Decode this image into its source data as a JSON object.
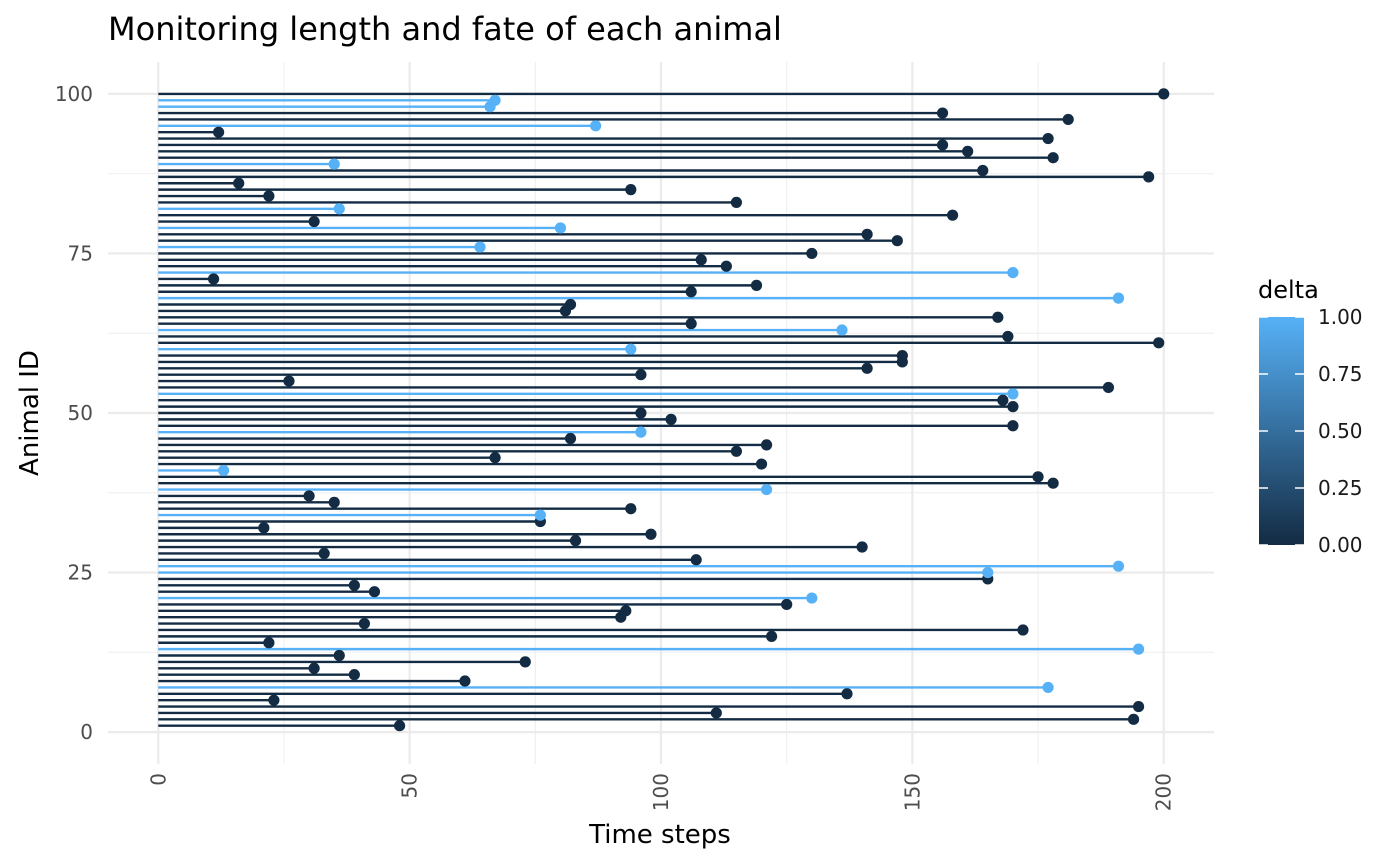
{
  "chart_data": {
    "type": "lollipop",
    "title": "Monitoring length and fate of each animal",
    "xlabel": "Time steps",
    "ylabel": "Animal ID",
    "xlim": [
      -10,
      210
    ],
    "ylim": [
      -5,
      105
    ],
    "x_ticks": [
      "0",
      "50",
      "100",
      "150",
      "200"
    ],
    "y_ticks": [
      "0",
      "25",
      "50",
      "75",
      "100"
    ],
    "grid": true,
    "legend": {
      "title": "delta",
      "placement": "right",
      "labels": [
        "1.00",
        "0.75",
        "0.50",
        "0.25",
        "0.00"
      ],
      "values": [
        1,
        0.75,
        0.5,
        0.25,
        0
      ],
      "color_low": "#132B43",
      "color_high": "#56B1F7"
    },
    "ids": [
      1,
      2,
      3,
      4,
      5,
      6,
      7,
      8,
      9,
      10,
      11,
      12,
      13,
      14,
      15,
      16,
      17,
      18,
      19,
      20,
      21,
      22,
      23,
      24,
      25,
      26,
      27,
      28,
      29,
      30,
      31,
      32,
      33,
      34,
      35,
      36,
      37,
      38,
      39,
      40,
      41,
      42,
      43,
      44,
      45,
      46,
      47,
      48,
      49,
      50,
      51,
      52,
      53,
      54,
      55,
      56,
      57,
      58,
      59,
      60,
      61,
      62,
      63,
      64,
      65,
      66,
      67,
      68,
      69,
      70,
      71,
      72,
      73,
      74,
      75,
      76,
      77,
      78,
      79,
      80,
      81,
      82,
      83,
      84,
      85,
      86,
      87,
      88,
      89,
      90,
      91,
      92,
      93,
      94,
      95,
      96,
      97,
      98,
      99,
      100
    ],
    "time": [
      48,
      194,
      111,
      195,
      23,
      137,
      177,
      61,
      39,
      31,
      73,
      36,
      195,
      22,
      122,
      172,
      41,
      92,
      93,
      125,
      130,
      43,
      39,
      165,
      165,
      191,
      107,
      33,
      140,
      83,
      98,
      21,
      76,
      76,
      94,
      35,
      30,
      121,
      178,
      175,
      13,
      120,
      67,
      115,
      121,
      82,
      96,
      170,
      102,
      96,
      170,
      168,
      170,
      189,
      26,
      96,
      141,
      148,
      148,
      94,
      199,
      169,
      136,
      106,
      167,
      81,
      82,
      191,
      106,
      119,
      11,
      170,
      113,
      108,
      130,
      64,
      147,
      141,
      80,
      31,
      158,
      36,
      115,
      22,
      94,
      16,
      197,
      164,
      35,
      178,
      161,
      156,
      177,
      12,
      87,
      181,
      156,
      66,
      67,
      200
    ],
    "delta": [
      0,
      0,
      0,
      0,
      0,
      0,
      1,
      0,
      0,
      0,
      0,
      0,
      1,
      0,
      0,
      0,
      0,
      0,
      0,
      0,
      1,
      0,
      0,
      0,
      1,
      1,
      0,
      0,
      0,
      0,
      0,
      0,
      0,
      1,
      0,
      0,
      0,
      1,
      0,
      0,
      1,
      0,
      0,
      0,
      0,
      0,
      1,
      0,
      0,
      0,
      0,
      0,
      1,
      0,
      0,
      0,
      0,
      0,
      0,
      1,
      0,
      0,
      1,
      0,
      0,
      0,
      0,
      1,
      0,
      0,
      0,
      1,
      0,
      0,
      0,
      1,
      0,
      0,
      1,
      0,
      0,
      1,
      0,
      0,
      0,
      0,
      0,
      0,
      1,
      0,
      0,
      0,
      0,
      0,
      1,
      0,
      0,
      1,
      1,
      0
    ]
  }
}
